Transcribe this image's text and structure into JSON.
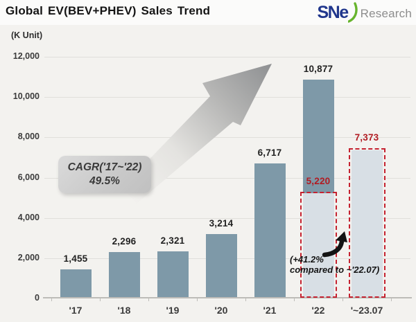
{
  "header": {
    "title": "Global EV(BEV+PHEV) Sales Trend",
    "logo": {
      "mark": "SNe",
      "name": "Research"
    }
  },
  "chart_data": {
    "type": "bar",
    "title": "Global EV(BEV+PHEV) Sales Trend",
    "unit_label": "(K Unit)",
    "ylabel": "K Unit",
    "ylim": [
      0,
      12000
    ],
    "grid": true,
    "ytick_values": [
      12000,
      10000,
      8000,
      6000,
      4000,
      2000,
      0
    ],
    "ytick_labels": [
      "12,000",
      "10,000",
      "8,000",
      "6,000",
      "4,000",
      "2,000",
      "0"
    ],
    "categories": [
      "'17",
      "'18",
      "'19",
      "'20",
      "'21",
      "'22",
      "'~23.07"
    ],
    "values": [
      1455,
      2296,
      2321,
      3214,
      6717,
      10877,
      7373
    ],
    "bars": [
      {
        "label": "'17",
        "value": 1455,
        "display": "1,455",
        "style": "solid"
      },
      {
        "label": "'18",
        "value": 2296,
        "display": "2,296",
        "style": "solid"
      },
      {
        "label": "'19",
        "value": 2321,
        "display": "2,321",
        "style": "solid"
      },
      {
        "label": "'20",
        "value": 3214,
        "display": "3,214",
        "style": "solid"
      },
      {
        "label": "'21",
        "value": 6717,
        "display": "6,717",
        "style": "solid"
      },
      {
        "label": "'22",
        "value": 10877,
        "display": "10,877",
        "style": "split",
        "split_value": 5220,
        "split_display": "5,220"
      },
      {
        "label": "'~23.07",
        "value": 7373,
        "display": "7,373",
        "style": "outlook"
      }
    ],
    "annotations": {
      "cagr_line1": "CAGR('17~'22)",
      "cagr_line2": "49.5%",
      "growth_line1": "(+41.2%",
      "growth_line2": "compared to ~'22.07)"
    },
    "colors": {
      "bar": "#7e99a8",
      "bar_light": "#d8dfe5",
      "red_text": "#b11b22",
      "red_dash": "#c52230",
      "logo_navy": "#20368c",
      "logo_green": "#67b42d"
    }
  }
}
